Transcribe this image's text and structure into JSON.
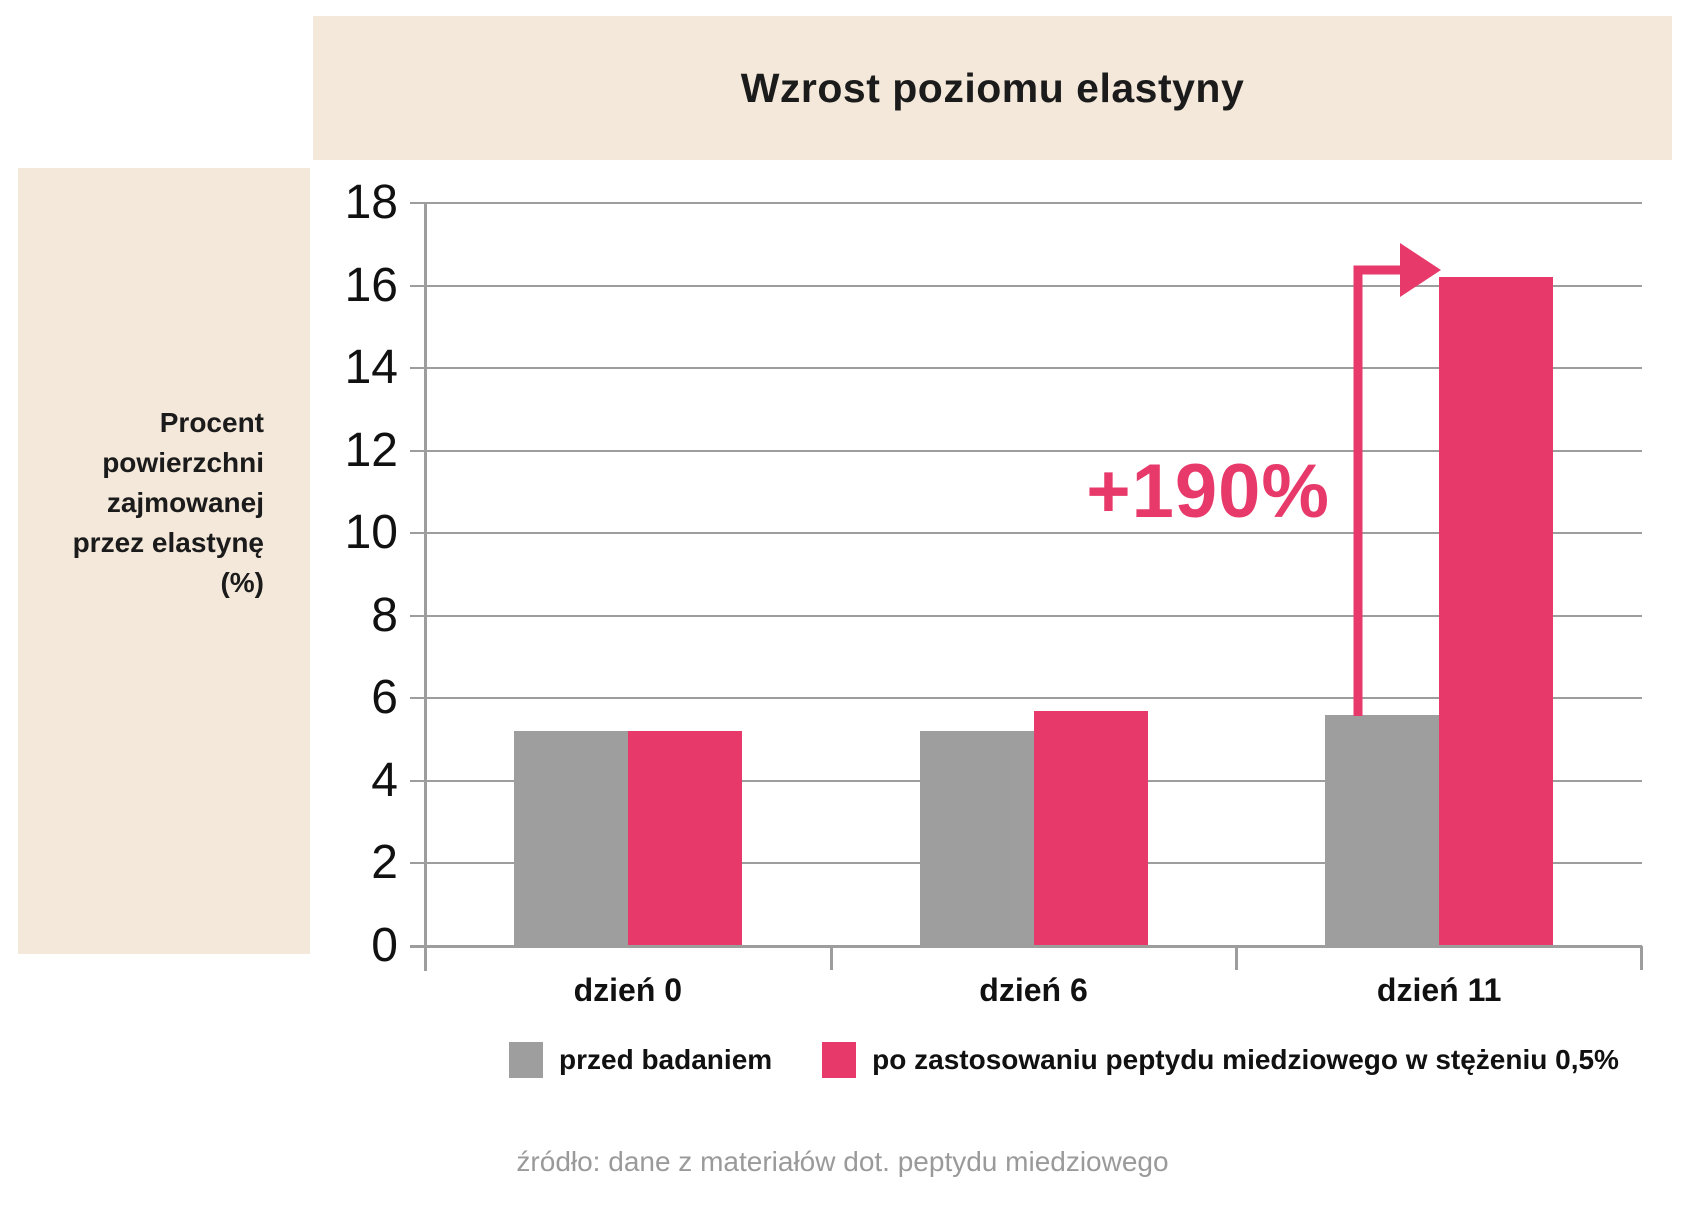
{
  "title": "Wzrost poziomu elastyny",
  "y_axis_label": "Procent powierzchni zajmowanej przez elastynę (%)",
  "source_note": "źródło: dane z materiałów dot. peptydu miedziowego",
  "colors": {
    "background": "#ffffff",
    "beige": "#f3e8da",
    "pink": "#e73a6b",
    "gray_bar": "#9e9e9e",
    "grid": "#9d9d9d",
    "text": "#1b1b1b",
    "source_text": "#9a9a9a"
  },
  "chart_data": {
    "type": "bar",
    "title": "Wzrost poziomu elastyny",
    "categories": [
      "dzień 0",
      "dzień 6",
      "dzień 11"
    ],
    "series": [
      {
        "name": "przed badaniem",
        "color": "#9e9e9e",
        "values": [
          5.2,
          5.2,
          5.6
        ]
      },
      {
        "name": "po zastosowaniu peptydu miedziowego w stężeniu 0,5%",
        "color": "#e73a6b",
        "values": [
          5.2,
          5.7,
          16.2
        ]
      }
    ],
    "ylabel": "Procent powierzchni zajmowanej przez elastynę (%)",
    "ylim": [
      0,
      18
    ],
    "ytick_step": 2,
    "grid": true,
    "legend_position": "bottom",
    "annotation": {
      "text": "+190%",
      "applies_to": {
        "series": "po zastosowaniu peptydu miedziowego w stężeniu 0,5%",
        "category": "dzień 11"
      }
    },
    "source": "źródło: dane z materiałów dot. peptydu miedziowego"
  }
}
